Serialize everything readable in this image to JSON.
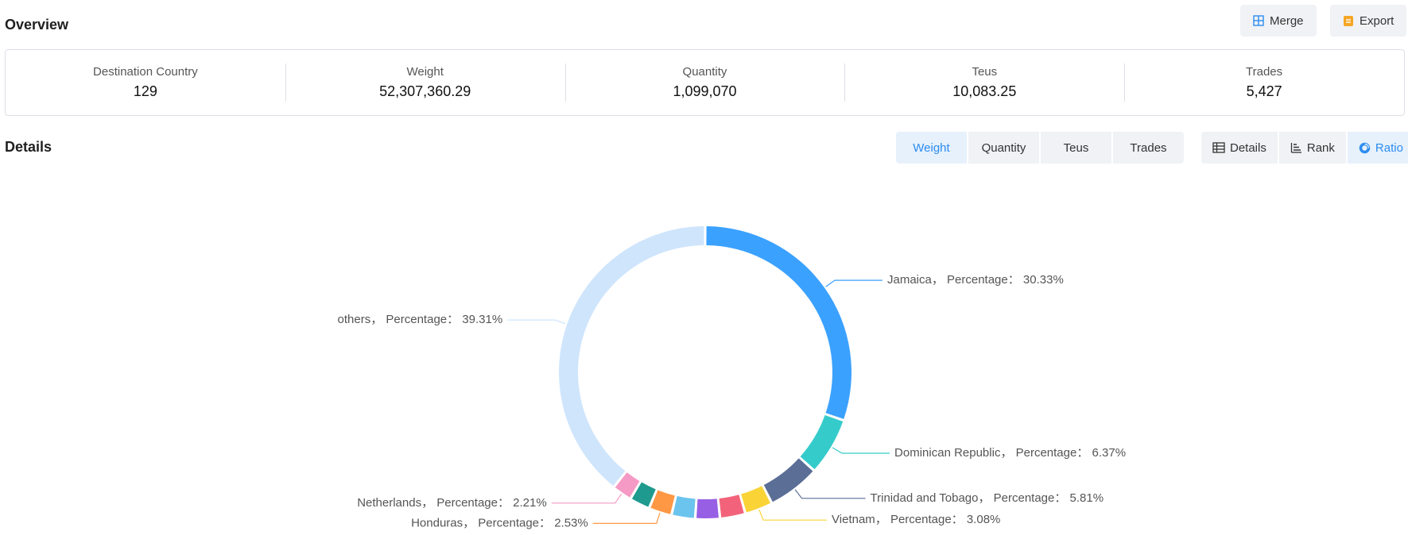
{
  "overview": {
    "title": "Overview",
    "merge_label": "Merge",
    "export_label": "Export",
    "stats": [
      {
        "label": "Destination Country",
        "value": "129"
      },
      {
        "label": "Weight",
        "value": "52,307,360.29"
      },
      {
        "label": "Quantity",
        "value": "1,099,070"
      },
      {
        "label": "Teus",
        "value": "10,083.25"
      },
      {
        "label": "Trades",
        "value": "5,427"
      }
    ]
  },
  "details": {
    "title": "Details",
    "metric_tabs": [
      "Weight",
      "Quantity",
      "Teus",
      "Trades"
    ],
    "active_metric": "Weight",
    "view_tabs": [
      "Details",
      "Rank",
      "Ratio"
    ],
    "active_view": "Ratio"
  },
  "colors": {
    "accent": "#2d8cf0",
    "button_bg": "#f0f2f5",
    "active_bg": "#e6f1fc"
  },
  "chart_data": {
    "type": "pie",
    "variant": "donut",
    "slices": [
      {
        "name": "Jamaica",
        "value": 30.33,
        "label": "Jamaica，  Percentage： 30.33%",
        "color": "#3ba1ff",
        "labeled": true
      },
      {
        "name": "Dominican Republic",
        "value": 6.37,
        "label": "Dominican Republic，  Percentage： 6.37%",
        "color": "#36cbcb",
        "labeled": true
      },
      {
        "name": "Trinidad and Tobago",
        "value": 5.81,
        "label": "Trinidad and Tobago，  Percentage： 5.81%",
        "color": "#5b6e96",
        "labeled": true
      },
      {
        "name": "Vietnam",
        "value": 3.08,
        "label": "Vietnam，  Percentage： 3.08%",
        "color": "#fad337",
        "labeled": true
      },
      {
        "name": "",
        "value": 2.8,
        "label": "",
        "color": "#f2637b",
        "labeled": false
      },
      {
        "name": "",
        "value": 2.7,
        "label": "",
        "color": "#975fe4",
        "labeled": false
      },
      {
        "name": "",
        "value": 2.6,
        "label": "",
        "color": "#6bc4ee",
        "labeled": false
      },
      {
        "name": "Honduras",
        "value": 2.53,
        "label": "Honduras，  Percentage： 2.53%",
        "color": "#ff9845",
        "labeled": true
      },
      {
        "name": "",
        "value": 2.26,
        "label": "",
        "color": "#1e9a8e",
        "labeled": false
      },
      {
        "name": "Netherlands",
        "value": 2.21,
        "label": "Netherlands，  Percentage： 2.21%",
        "color": "#f59ac5",
        "labeled": true
      },
      {
        "name": "others",
        "value": 39.31,
        "label": "others，  Percentage： 39.31%",
        "color": "#cfe5fc",
        "labeled": true
      }
    ]
  }
}
